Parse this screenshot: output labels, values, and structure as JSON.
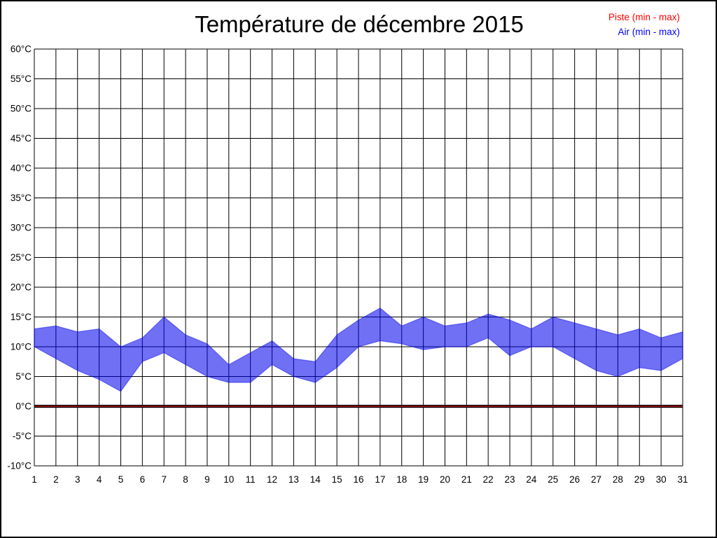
{
  "title": "Température de décembre 2015",
  "legend": {
    "piste_label": "Piste (min - max)",
    "piste_color": "#ff0000",
    "air_label": "Air (min - max)",
    "air_color": "#0000ff"
  },
  "chart_data": {
    "type": "area",
    "title": "Température de décembre 2015",
    "ylim": [
      -10,
      60
    ],
    "ytick_step": 5,
    "ytick_suffix": "°C",
    "grid": true,
    "legend_position": "top-right",
    "days": [
      1,
      2,
      3,
      4,
      5,
      6,
      7,
      8,
      9,
      10,
      11,
      12,
      13,
      14,
      15,
      16,
      17,
      18,
      19,
      20,
      21,
      22,
      23,
      24,
      25,
      26,
      27,
      28,
      29,
      30,
      31
    ],
    "series": [
      {
        "name": "Air (min - max)",
        "color": "#0000ee",
        "fill_opacity": 0.56,
        "min": [
          10,
          8,
          6,
          4.5,
          2.5,
          7.5,
          9,
          7,
          5,
          4,
          4,
          7,
          5,
          4,
          6.5,
          10,
          11,
          10.5,
          9.5,
          10,
          10,
          11.5,
          8.5,
          10,
          10,
          8,
          6,
          5,
          6.5,
          6,
          8
        ],
        "max": [
          13,
          13.5,
          12.5,
          13,
          10,
          11.5,
          15,
          12,
          10.5,
          7,
          9,
          11,
          8,
          7.5,
          12,
          14.5,
          16.5,
          13.5,
          15,
          13.5,
          14,
          15.5,
          14.5,
          13,
          15,
          14,
          13,
          12,
          13,
          11.5,
          12.5
        ]
      },
      {
        "name": "Piste (min - max)",
        "color": "#8b0000",
        "line_core_color": "#841010",
        "min": [
          0,
          0,
          0,
          0,
          0,
          0,
          0,
          0,
          0,
          0,
          0,
          0,
          0,
          0,
          0,
          0,
          0,
          0,
          0,
          0,
          0,
          0,
          0,
          0,
          0,
          0,
          0,
          0,
          0,
          0,
          0
        ],
        "max": [
          0,
          0,
          0,
          0,
          0,
          0,
          0,
          0,
          0,
          0,
          0,
          0,
          0,
          0,
          0,
          0,
          0,
          0,
          0,
          0,
          0,
          0,
          0,
          0,
          0,
          0,
          0,
          0,
          0,
          0,
          0
        ]
      }
    ]
  }
}
